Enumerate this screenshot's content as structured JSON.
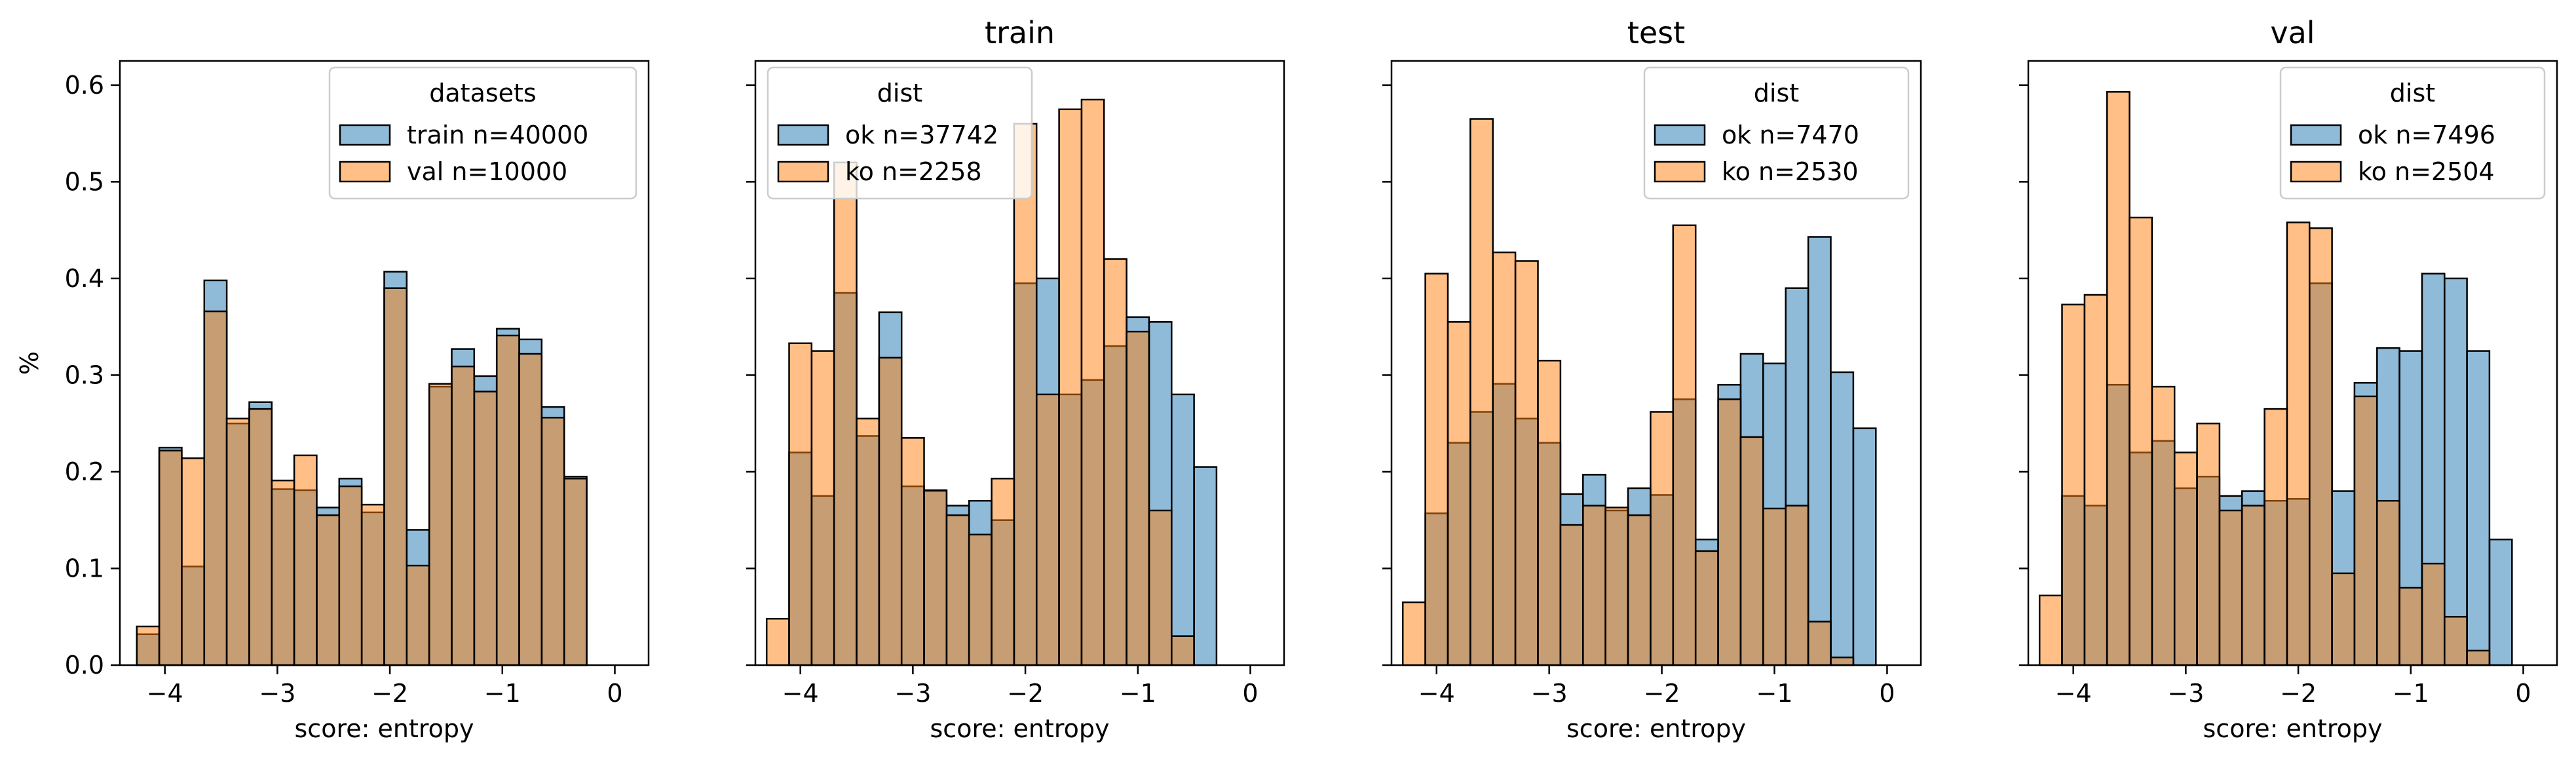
{
  "colors": {
    "ok": "#1f77b4",
    "ko": "#ff7f0e",
    "bar_alpha": 0.5
  },
  "chart_data": [
    {
      "type": "bar",
      "title": "",
      "xlabel": "score: entropy",
      "ylabel": "%",
      "xlim": [
        -4.4,
        0.3
      ],
      "ylim": [
        0,
        0.625
      ],
      "xticks": [
        -4,
        -3,
        -2,
        -1,
        0
      ],
      "xtick_labels": [
        "−4",
        "−3",
        "−2",
        "−1",
        "0"
      ],
      "yticks": [
        0.0,
        0.1,
        0.2,
        0.3,
        0.4,
        0.5,
        0.6
      ],
      "ytick_labels": [
        "0.0",
        "0.1",
        "0.2",
        "0.3",
        "0.4",
        "0.5",
        "0.6"
      ],
      "legend": {
        "title": "datasets",
        "placement": "upper right"
      },
      "series": [
        {
          "name": "train n=40000",
          "color": "#1f77b4",
          "bins": [
            [
              -4.25,
              -4.05,
              0.032
            ],
            [
              -4.05,
              -3.85,
              0.225
            ],
            [
              -3.85,
              -3.65,
              0.102
            ],
            [
              -3.65,
              -3.45,
              0.398
            ],
            [
              -3.45,
              -3.25,
              0.25
            ],
            [
              -3.25,
              -3.05,
              0.272
            ],
            [
              -3.05,
              -2.85,
              0.182
            ],
            [
              -2.85,
              -2.65,
              0.181
            ],
            [
              -2.65,
              -2.45,
              0.163
            ],
            [
              -2.45,
              -2.25,
              0.193
            ],
            [
              -2.25,
              -2.05,
              0.158
            ],
            [
              -2.05,
              -1.85,
              0.407
            ],
            [
              -1.85,
              -1.65,
              0.14
            ],
            [
              -1.65,
              -1.45,
              0.288
            ],
            [
              -1.45,
              -1.25,
              0.327
            ],
            [
              -1.25,
              -1.05,
              0.299
            ],
            [
              -1.05,
              -0.85,
              0.348
            ],
            [
              -0.85,
              -0.65,
              0.337
            ],
            [
              -0.65,
              -0.45,
              0.267
            ],
            [
              -0.45,
              -0.25,
              0.195
            ]
          ]
        },
        {
          "name": "val n=10000",
          "color": "#ff7f0e",
          "bins": [
            [
              -4.25,
              -4.05,
              0.04
            ],
            [
              -4.05,
              -3.85,
              0.222
            ],
            [
              -3.85,
              -3.65,
              0.214
            ],
            [
              -3.65,
              -3.45,
              0.366
            ],
            [
              -3.45,
              -3.25,
              0.255
            ],
            [
              -3.25,
              -3.05,
              0.265
            ],
            [
              -3.05,
              -2.85,
              0.191
            ],
            [
              -2.85,
              -2.65,
              0.217
            ],
            [
              -2.65,
              -2.45,
              0.155
            ],
            [
              -2.45,
              -2.25,
              0.185
            ],
            [
              -2.25,
              -2.05,
              0.166
            ],
            [
              -2.05,
              -1.85,
              0.39
            ],
            [
              -1.85,
              -1.65,
              0.103
            ],
            [
              -1.65,
              -1.45,
              0.291
            ],
            [
              -1.45,
              -1.25,
              0.309
            ],
            [
              -1.25,
              -1.05,
              0.283
            ],
            [
              -1.05,
              -0.85,
              0.341
            ],
            [
              -0.85,
              -0.65,
              0.322
            ],
            [
              -0.65,
              -0.45,
              0.256
            ],
            [
              -0.45,
              -0.25,
              0.193
            ]
          ]
        }
      ]
    },
    {
      "type": "bar",
      "title": "train",
      "xlabel": "score: entropy",
      "ylabel": "",
      "xlim": [
        -4.4,
        0.3
      ],
      "ylim": [
        0,
        0.625
      ],
      "xticks": [
        -4,
        -3,
        -2,
        -1,
        0
      ],
      "xtick_labels": [
        "−4",
        "−3",
        "−2",
        "−1",
        "0"
      ],
      "yticks": [
        0.0,
        0.1,
        0.2,
        0.3,
        0.4,
        0.5,
        0.6
      ],
      "legend": {
        "title": "dist",
        "placement": "upper left"
      },
      "series": [
        {
          "name": "ok n=37742",
          "color": "#1f77b4",
          "bins": [
            [
              -4.1,
              -3.9,
              0.22
            ],
            [
              -3.9,
              -3.7,
              0.175
            ],
            [
              -3.7,
              -3.5,
              0.385
            ],
            [
              -3.5,
              -3.3,
              0.237
            ],
            [
              -3.3,
              -3.1,
              0.365
            ],
            [
              -3.1,
              -2.9,
              0.185
            ],
            [
              -2.9,
              -2.7,
              0.18
            ],
            [
              -2.7,
              -2.5,
              0.165
            ],
            [
              -2.5,
              -2.3,
              0.17
            ],
            [
              -2.3,
              -2.1,
              0.15
            ],
            [
              -2.1,
              -1.9,
              0.395
            ],
            [
              -1.9,
              -1.7,
              0.4
            ],
            [
              -1.7,
              -1.5,
              0.28
            ],
            [
              -1.5,
              -1.3,
              0.295
            ],
            [
              -1.3,
              -1.1,
              0.33
            ],
            [
              -1.1,
              -0.9,
              0.36
            ],
            [
              -0.9,
              -0.7,
              0.355
            ],
            [
              -0.7,
              -0.5,
              0.28
            ],
            [
              -0.5,
              -0.3,
              0.205
            ]
          ]
        },
        {
          "name": "ko n=2258",
          "color": "#ff7f0e",
          "bins": [
            [
              -4.3,
              -4.1,
              0.048
            ],
            [
              -4.1,
              -3.9,
              0.333
            ],
            [
              -3.9,
              -3.7,
              0.325
            ],
            [
              -3.7,
              -3.5,
              0.52
            ],
            [
              -3.5,
              -3.3,
              0.255
            ],
            [
              -3.3,
              -3.1,
              0.318
            ],
            [
              -3.1,
              -2.9,
              0.235
            ],
            [
              -2.9,
              -2.7,
              0.181
            ],
            [
              -2.7,
              -2.5,
              0.155
            ],
            [
              -2.5,
              -2.3,
              0.135
            ],
            [
              -2.3,
              -2.1,
              0.193
            ],
            [
              -2.1,
              -1.9,
              0.56
            ],
            [
              -1.9,
              -1.7,
              0.28
            ],
            [
              -1.7,
              -1.5,
              0.575
            ],
            [
              -1.5,
              -1.3,
              0.585
            ],
            [
              -1.3,
              -1.1,
              0.42
            ],
            [
              -1.1,
              -0.9,
              0.345
            ],
            [
              -0.9,
              -0.7,
              0.16
            ],
            [
              -0.7,
              -0.5,
              0.03
            ]
          ]
        }
      ]
    },
    {
      "type": "bar",
      "title": "test",
      "xlabel": "score: entropy",
      "ylabel": "",
      "xlim": [
        -4.4,
        0.3
      ],
      "ylim": [
        0,
        0.625
      ],
      "xticks": [
        -4,
        -3,
        -2,
        -1,
        0
      ],
      "xtick_labels": [
        "−4",
        "−3",
        "−2",
        "−1",
        "0"
      ],
      "yticks": [
        0.0,
        0.1,
        0.2,
        0.3,
        0.4,
        0.5,
        0.6
      ],
      "legend": {
        "title": "dist",
        "placement": "upper right"
      },
      "series": [
        {
          "name": "ok n=7470",
          "color": "#1f77b4",
          "bins": [
            [
              -4.1,
              -3.9,
              0.157
            ],
            [
              -3.9,
              -3.7,
              0.23
            ],
            [
              -3.7,
              -3.5,
              0.262
            ],
            [
              -3.5,
              -3.3,
              0.291
            ],
            [
              -3.3,
              -3.1,
              0.255
            ],
            [
              -3.1,
              -2.9,
              0.23
            ],
            [
              -2.9,
              -2.7,
              0.177
            ],
            [
              -2.7,
              -2.5,
              0.197
            ],
            [
              -2.5,
              -2.3,
              0.16
            ],
            [
              -2.3,
              -2.1,
              0.183
            ],
            [
              -2.1,
              -1.9,
              0.176
            ],
            [
              -1.9,
              -1.7,
              0.275
            ],
            [
              -1.7,
              -1.5,
              0.13
            ],
            [
              -1.5,
              -1.3,
              0.29
            ],
            [
              -1.3,
              -1.1,
              0.322
            ],
            [
              -1.1,
              -0.9,
              0.312
            ],
            [
              -0.9,
              -0.7,
              0.39
            ],
            [
              -0.7,
              -0.5,
              0.443
            ],
            [
              -0.5,
              -0.3,
              0.303
            ],
            [
              -0.3,
              -0.1,
              0.245
            ]
          ]
        },
        {
          "name": "ko n=2530",
          "color": "#ff7f0e",
          "bins": [
            [
              -4.3,
              -4.1,
              0.065
            ],
            [
              -4.1,
              -3.9,
              0.405
            ],
            [
              -3.9,
              -3.7,
              0.355
            ],
            [
              -3.7,
              -3.5,
              0.565
            ],
            [
              -3.5,
              -3.3,
              0.427
            ],
            [
              -3.3,
              -3.1,
              0.418
            ],
            [
              -3.1,
              -2.9,
              0.315
            ],
            [
              -2.9,
              -2.7,
              0.145
            ],
            [
              -2.7,
              -2.5,
              0.165
            ],
            [
              -2.5,
              -2.3,
              0.163
            ],
            [
              -2.3,
              -2.1,
              0.155
            ],
            [
              -2.1,
              -1.9,
              0.262
            ],
            [
              -1.9,
              -1.7,
              0.455
            ],
            [
              -1.7,
              -1.5,
              0.118
            ],
            [
              -1.5,
              -1.3,
              0.275
            ],
            [
              -1.3,
              -1.1,
              0.236
            ],
            [
              -1.1,
              -0.9,
              0.162
            ],
            [
              -0.9,
              -0.7,
              0.165
            ],
            [
              -0.7,
              -0.5,
              0.045
            ],
            [
              -0.5,
              -0.3,
              0.008
            ]
          ]
        }
      ]
    },
    {
      "type": "bar",
      "title": "val",
      "xlabel": "score: entropy",
      "ylabel": "",
      "xlim": [
        -4.4,
        0.3
      ],
      "ylim": [
        0,
        0.625
      ],
      "xticks": [
        -4,
        -3,
        -2,
        -1,
        0
      ],
      "xtick_labels": [
        "−4",
        "−3",
        "−2",
        "−1",
        "0"
      ],
      "yticks": [
        0.0,
        0.1,
        0.2,
        0.3,
        0.4,
        0.5,
        0.6
      ],
      "legend": {
        "title": "dist",
        "placement": "upper right"
      },
      "series": [
        {
          "name": "ok n=7496",
          "color": "#1f77b4",
          "bins": [
            [
              -4.1,
              -3.9,
              0.175
            ],
            [
              -3.9,
              -3.7,
              0.165
            ],
            [
              -3.7,
              -3.5,
              0.29
            ],
            [
              -3.5,
              -3.3,
              0.22
            ],
            [
              -3.3,
              -3.1,
              0.232
            ],
            [
              -3.1,
              -2.9,
              0.183
            ],
            [
              -2.9,
              -2.7,
              0.195
            ],
            [
              -2.7,
              -2.5,
              0.175
            ],
            [
              -2.5,
              -2.3,
              0.18
            ],
            [
              -2.3,
              -2.1,
              0.17
            ],
            [
              -2.1,
              -1.9,
              0.172
            ],
            [
              -1.9,
              -1.7,
              0.395
            ],
            [
              -1.7,
              -1.5,
              0.18
            ],
            [
              -1.5,
              -1.3,
              0.292
            ],
            [
              -1.3,
              -1.1,
              0.328
            ],
            [
              -1.1,
              -0.9,
              0.325
            ],
            [
              -0.9,
              -0.7,
              0.405
            ],
            [
              -0.7,
              -0.5,
              0.4
            ],
            [
              -0.5,
              -0.3,
              0.325
            ],
            [
              -0.3,
              -0.1,
              0.13
            ]
          ]
        },
        {
          "name": "ko n=2504",
          "color": "#ff7f0e",
          "bins": [
            [
              -4.3,
              -4.1,
              0.072
            ],
            [
              -4.1,
              -3.9,
              0.373
            ],
            [
              -3.9,
              -3.7,
              0.383
            ],
            [
              -3.7,
              -3.5,
              0.593
            ],
            [
              -3.5,
              -3.3,
              0.463
            ],
            [
              -3.3,
              -3.1,
              0.288
            ],
            [
              -3.1,
              -2.9,
              0.22
            ],
            [
              -2.9,
              -2.7,
              0.25
            ],
            [
              -2.7,
              -2.5,
              0.16
            ],
            [
              -2.5,
              -2.3,
              0.165
            ],
            [
              -2.3,
              -2.1,
              0.265
            ],
            [
              -2.1,
              -1.9,
              0.458
            ],
            [
              -1.9,
              -1.7,
              0.452
            ],
            [
              -1.7,
              -1.5,
              0.095
            ],
            [
              -1.5,
              -1.3,
              0.278
            ],
            [
              -1.3,
              -1.1,
              0.17
            ],
            [
              -1.1,
              -0.9,
              0.08
            ],
            [
              -0.9,
              -0.7,
              0.105
            ],
            [
              -0.7,
              -0.5,
              0.05
            ],
            [
              -0.5,
              -0.3,
              0.015
            ]
          ]
        }
      ]
    }
  ]
}
